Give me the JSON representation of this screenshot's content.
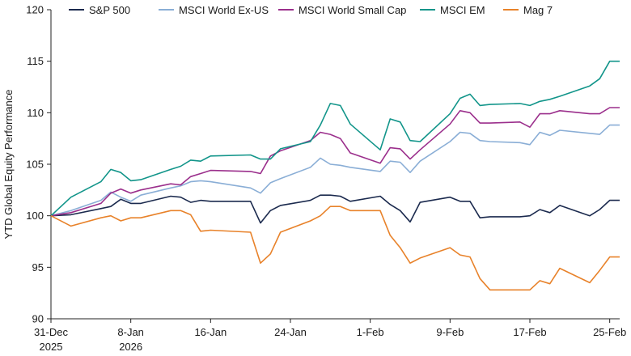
{
  "chart_data": {
    "type": "line",
    "ylabel": "YTD Global Equity Performance",
    "ylim": [
      90,
      120
    ],
    "yticks": [
      90,
      95,
      100,
      105,
      110,
      115,
      120
    ],
    "xlim": [
      "2025-12-31",
      "2026-02-26"
    ],
    "xticks": [
      {
        "date": "2025-12-31",
        "line1": "31-Dec",
        "line2": "2025"
      },
      {
        "date": "2026-01-08",
        "line1": "8-Jan",
        "line2": "2026"
      },
      {
        "date": "2026-01-16",
        "line1": "16-Jan",
        "line2": ""
      },
      {
        "date": "2026-01-24",
        "line1": "24-Jan",
        "line2": ""
      },
      {
        "date": "2026-02-01",
        "line1": "1-Feb",
        "line2": ""
      },
      {
        "date": "2026-02-09",
        "line1": "9-Feb",
        "line2": ""
      },
      {
        "date": "2026-02-17",
        "line1": "17-Feb",
        "line2": ""
      },
      {
        "date": "2026-02-25",
        "line1": "25-Feb",
        "line2": ""
      }
    ],
    "grid": false,
    "legend_position": "top",
    "series": [
      {
        "name": "S&P 500",
        "color": "#1b2a4e",
        "points": [
          [
            "2025-12-31",
            100.0
          ],
          [
            "2026-01-02",
            100.1
          ],
          [
            "2026-01-05",
            100.7
          ],
          [
            "2026-01-06",
            100.9
          ],
          [
            "2026-01-07",
            101.6
          ],
          [
            "2026-01-08",
            101.2
          ],
          [
            "2026-01-09",
            101.2
          ],
          [
            "2026-01-12",
            101.9
          ],
          [
            "2026-01-13",
            101.8
          ],
          [
            "2026-01-14",
            101.3
          ],
          [
            "2026-01-15",
            101.5
          ],
          [
            "2026-01-16",
            101.4
          ],
          [
            "2026-01-20",
            101.4
          ],
          [
            "2026-01-21",
            99.3
          ],
          [
            "2026-01-22",
            100.5
          ],
          [
            "2026-01-23",
            101.0
          ],
          [
            "2026-01-26",
            101.5
          ],
          [
            "2026-01-27",
            102.0
          ],
          [
            "2026-01-28",
            102.0
          ],
          [
            "2026-01-29",
            101.9
          ],
          [
            "2026-01-30",
            101.4
          ],
          [
            "2026-02-02",
            101.9
          ],
          [
            "2026-02-03",
            101.1
          ],
          [
            "2026-02-04",
            100.5
          ],
          [
            "2026-02-05",
            99.4
          ],
          [
            "2026-02-06",
            101.3
          ],
          [
            "2026-02-09",
            101.8
          ],
          [
            "2026-02-10",
            101.4
          ],
          [
            "2026-02-11",
            101.4
          ],
          [
            "2026-02-12",
            99.8
          ],
          [
            "2026-02-13",
            99.9
          ],
          [
            "2026-02-16",
            99.9
          ],
          [
            "2026-02-17",
            100.0
          ],
          [
            "2026-02-18",
            100.6
          ],
          [
            "2026-02-19",
            100.3
          ],
          [
            "2026-02-20",
            101.0
          ],
          [
            "2026-02-23",
            100.0
          ],
          [
            "2026-02-24",
            100.6
          ],
          [
            "2026-02-25",
            101.5
          ],
          [
            "2026-02-26",
            101.5
          ]
        ]
      },
      {
        "name": "MSCI World Ex-US",
        "color": "#8aaed6",
        "points": [
          [
            "2025-12-31",
            100.0
          ],
          [
            "2026-01-02",
            100.5
          ],
          [
            "2026-01-05",
            101.5
          ],
          [
            "2026-01-06",
            102.3
          ],
          [
            "2026-01-07",
            101.8
          ],
          [
            "2026-01-08",
            101.4
          ],
          [
            "2026-01-09",
            102.0
          ],
          [
            "2026-01-12",
            102.7
          ],
          [
            "2026-01-13",
            102.9
          ],
          [
            "2026-01-14",
            103.3
          ],
          [
            "2026-01-15",
            103.4
          ],
          [
            "2026-01-16",
            103.3
          ],
          [
            "2026-01-20",
            102.7
          ],
          [
            "2026-01-21",
            102.2
          ],
          [
            "2026-01-22",
            103.2
          ],
          [
            "2026-01-23",
            103.6
          ],
          [
            "2026-01-26",
            104.7
          ],
          [
            "2026-01-27",
            105.6
          ],
          [
            "2026-01-28",
            105.0
          ],
          [
            "2026-01-29",
            104.9
          ],
          [
            "2026-01-30",
            104.7
          ],
          [
            "2026-02-02",
            104.3
          ],
          [
            "2026-02-03",
            105.3
          ],
          [
            "2026-02-04",
            105.2
          ],
          [
            "2026-02-05",
            104.2
          ],
          [
            "2026-02-06",
            105.3
          ],
          [
            "2026-02-09",
            107.2
          ],
          [
            "2026-02-10",
            108.1
          ],
          [
            "2026-02-11",
            108.0
          ],
          [
            "2026-02-12",
            107.3
          ],
          [
            "2026-02-13",
            107.2
          ],
          [
            "2026-02-16",
            107.1
          ],
          [
            "2026-02-17",
            106.9
          ],
          [
            "2026-02-18",
            108.1
          ],
          [
            "2026-02-19",
            107.8
          ],
          [
            "2026-02-20",
            108.3
          ],
          [
            "2026-02-23",
            108.0
          ],
          [
            "2026-02-24",
            107.9
          ],
          [
            "2026-02-25",
            108.8
          ],
          [
            "2026-02-26",
            108.8
          ]
        ]
      },
      {
        "name": "MSCI World Small Cap",
        "color": "#9b2f8c",
        "points": [
          [
            "2025-12-31",
            100.0
          ],
          [
            "2026-01-02",
            100.3
          ],
          [
            "2026-01-05",
            101.2
          ],
          [
            "2026-01-06",
            102.2
          ],
          [
            "2026-01-07",
            102.6
          ],
          [
            "2026-01-08",
            102.2
          ],
          [
            "2026-01-09",
            102.5
          ],
          [
            "2026-01-12",
            103.1
          ],
          [
            "2026-01-13",
            103.0
          ],
          [
            "2026-01-14",
            103.8
          ],
          [
            "2026-01-15",
            104.1
          ],
          [
            "2026-01-16",
            104.4
          ],
          [
            "2026-01-20",
            104.3
          ],
          [
            "2026-01-21",
            104.1
          ],
          [
            "2026-01-22",
            105.8
          ],
          [
            "2026-01-23",
            106.3
          ],
          [
            "2026-01-26",
            107.3
          ],
          [
            "2026-01-27",
            108.1
          ],
          [
            "2026-01-28",
            107.9
          ],
          [
            "2026-01-29",
            107.5
          ],
          [
            "2026-01-30",
            106.1
          ],
          [
            "2026-02-02",
            105.1
          ],
          [
            "2026-02-03",
            106.6
          ],
          [
            "2026-02-04",
            106.5
          ],
          [
            "2026-02-05",
            105.5
          ],
          [
            "2026-02-06",
            106.4
          ],
          [
            "2026-02-09",
            108.9
          ],
          [
            "2026-02-10",
            110.2
          ],
          [
            "2026-02-11",
            110.0
          ],
          [
            "2026-02-12",
            109.0
          ],
          [
            "2026-02-13",
            109.0
          ],
          [
            "2026-02-16",
            109.1
          ],
          [
            "2026-02-17",
            108.6
          ],
          [
            "2026-02-18",
            109.9
          ],
          [
            "2026-02-19",
            109.9
          ],
          [
            "2026-02-20",
            110.2
          ],
          [
            "2026-02-23",
            109.9
          ],
          [
            "2026-02-24",
            109.9
          ],
          [
            "2026-02-25",
            110.5
          ],
          [
            "2026-02-26",
            110.5
          ]
        ]
      },
      {
        "name": "MSCI EM",
        "color": "#12958a",
        "points": [
          [
            "2025-12-31",
            100.0
          ],
          [
            "2026-01-02",
            101.8
          ],
          [
            "2026-01-05",
            103.3
          ],
          [
            "2026-01-06",
            104.5
          ],
          [
            "2026-01-07",
            104.2
          ],
          [
            "2026-01-08",
            103.4
          ],
          [
            "2026-01-09",
            103.5
          ],
          [
            "2026-01-12",
            104.5
          ],
          [
            "2026-01-13",
            104.8
          ],
          [
            "2026-01-14",
            105.4
          ],
          [
            "2026-01-15",
            105.3
          ],
          [
            "2026-01-16",
            105.8
          ],
          [
            "2026-01-20",
            105.9
          ],
          [
            "2026-01-21",
            105.5
          ],
          [
            "2026-01-22",
            105.5
          ],
          [
            "2026-01-23",
            106.5
          ],
          [
            "2026-01-26",
            107.2
          ],
          [
            "2026-01-27",
            108.8
          ],
          [
            "2026-01-28",
            110.9
          ],
          [
            "2026-01-29",
            110.7
          ],
          [
            "2026-01-30",
            108.9
          ],
          [
            "2026-02-02",
            106.4
          ],
          [
            "2026-02-03",
            109.4
          ],
          [
            "2026-02-04",
            109.1
          ],
          [
            "2026-02-05",
            107.3
          ],
          [
            "2026-02-06",
            107.2
          ],
          [
            "2026-02-09",
            109.9
          ],
          [
            "2026-02-10",
            111.4
          ],
          [
            "2026-02-11",
            111.8
          ],
          [
            "2026-02-12",
            110.7
          ],
          [
            "2026-02-13",
            110.8
          ],
          [
            "2026-02-16",
            110.9
          ],
          [
            "2026-02-17",
            110.7
          ],
          [
            "2026-02-18",
            111.1
          ],
          [
            "2026-02-19",
            111.3
          ],
          [
            "2026-02-20",
            111.6
          ],
          [
            "2026-02-23",
            112.6
          ],
          [
            "2026-02-24",
            113.3
          ],
          [
            "2026-02-25",
            115.0
          ],
          [
            "2026-02-26",
            115.0
          ]
        ]
      },
      {
        "name": "Mag 7",
        "color": "#e8822a",
        "points": [
          [
            "2025-12-31",
            100.0
          ],
          [
            "2026-01-02",
            99.0
          ],
          [
            "2026-01-05",
            99.8
          ],
          [
            "2026-01-06",
            100.0
          ],
          [
            "2026-01-07",
            99.5
          ],
          [
            "2026-01-08",
            99.8
          ],
          [
            "2026-01-09",
            99.8
          ],
          [
            "2026-01-12",
            100.5
          ],
          [
            "2026-01-13",
            100.5
          ],
          [
            "2026-01-14",
            100.1
          ],
          [
            "2026-01-15",
            98.5
          ],
          [
            "2026-01-16",
            98.6
          ],
          [
            "2026-01-20",
            98.4
          ],
          [
            "2026-01-21",
            95.4
          ],
          [
            "2026-01-22",
            96.3
          ],
          [
            "2026-01-23",
            98.4
          ],
          [
            "2026-01-26",
            99.5
          ],
          [
            "2026-01-27",
            100.0
          ],
          [
            "2026-01-28",
            100.9
          ],
          [
            "2026-01-29",
            100.9
          ],
          [
            "2026-01-30",
            100.5
          ],
          [
            "2026-02-02",
            100.5
          ],
          [
            "2026-02-03",
            98.1
          ],
          [
            "2026-02-04",
            96.9
          ],
          [
            "2026-02-05",
            95.4
          ],
          [
            "2026-02-06",
            95.9
          ],
          [
            "2026-02-09",
            96.9
          ],
          [
            "2026-02-10",
            96.2
          ],
          [
            "2026-02-11",
            96.0
          ],
          [
            "2026-02-12",
            93.9
          ],
          [
            "2026-02-13",
            92.8
          ],
          [
            "2026-02-16",
            92.8
          ],
          [
            "2026-02-17",
            92.8
          ],
          [
            "2026-02-18",
            93.7
          ],
          [
            "2026-02-19",
            93.4
          ],
          [
            "2026-02-20",
            94.9
          ],
          [
            "2026-02-23",
            93.5
          ],
          [
            "2026-02-24",
            94.7
          ],
          [
            "2026-02-25",
            96.0
          ],
          [
            "2026-02-26",
            96.0
          ]
        ]
      }
    ]
  }
}
